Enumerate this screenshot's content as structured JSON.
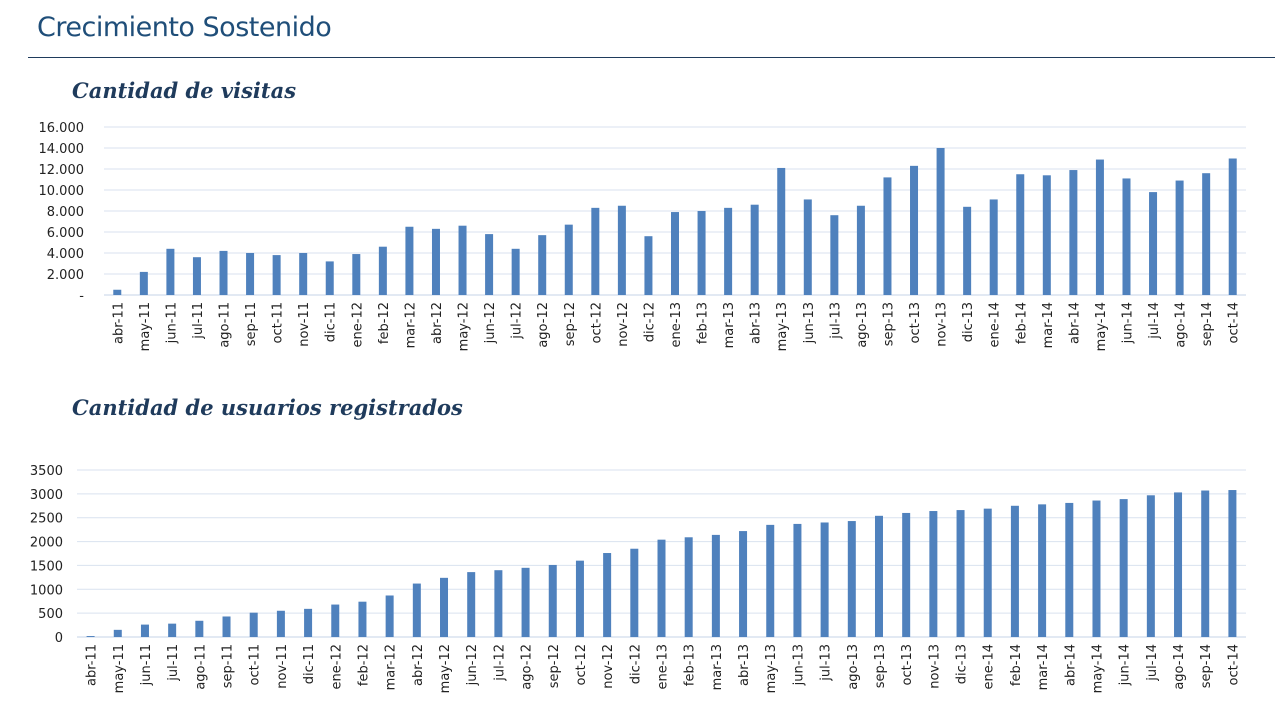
{
  "page": {
    "title": "Crecimiento Sostenido"
  },
  "charts": [
    {
      "heading": "Cantidad de visitas"
    },
    {
      "heading": "Cantidad de usuarios registrados"
    }
  ],
  "colors": {
    "bar": "#4f81bd",
    "grid": "#d9e2ef",
    "title": "#1f4e79",
    "heading": "#1f3b5c"
  },
  "chart_data": [
    {
      "type": "bar",
      "title": "Cantidad de visitas",
      "xlabel": "",
      "ylabel": "",
      "ylim": [
        0,
        16000
      ],
      "yticks": [
        0,
        2000,
        4000,
        6000,
        8000,
        10000,
        12000,
        14000,
        16000
      ],
      "ytick_labels": [
        "-",
        "2.000",
        "4.000",
        "6.000",
        "8.000",
        "10.000",
        "12.000",
        "14.000",
        "16.000"
      ],
      "grid": true,
      "legend": "none",
      "categories": [
        "abr-11",
        "may-11",
        "jun-11",
        "jul-11",
        "ago-11",
        "sep-11",
        "oct-11",
        "nov-11",
        "dic-11",
        "ene-12",
        "feb-12",
        "mar-12",
        "abr-12",
        "may-12",
        "jun-12",
        "jul-12",
        "ago-12",
        "sep-12",
        "oct-12",
        "nov-12",
        "dic-12",
        "ene-13",
        "feb-13",
        "mar-13",
        "abr-13",
        "may-13",
        "jun-13",
        "jul-13",
        "ago-13",
        "sep-13",
        "oct-13",
        "nov-13",
        "dic-13",
        "ene-14",
        "feb-14",
        "mar-14",
        "abr-14",
        "may-14",
        "jun-14",
        "jul-14",
        "ago-14",
        "sep-14",
        "oct-14"
      ],
      "values": [
        500,
        2200,
        4400,
        3600,
        4200,
        4000,
        3800,
        4000,
        3200,
        3900,
        4600,
        6500,
        6300,
        6600,
        5800,
        4400,
        5700,
        6700,
        8300,
        8500,
        5600,
        7900,
        8000,
        8300,
        8600,
        12100,
        9100,
        7600,
        8500,
        11200,
        12300,
        14000,
        8400,
        9100,
        11500,
        11400,
        11900,
        12900,
        11100,
        9800,
        10900,
        11600,
        13000
      ]
    },
    {
      "type": "bar",
      "title": "Cantidad de usuarios registrados",
      "xlabel": "",
      "ylabel": "",
      "ylim": [
        0,
        3500
      ],
      "yticks": [
        0,
        500,
        1000,
        1500,
        2000,
        2500,
        3000,
        3500
      ],
      "ytick_labels": [
        "0",
        "500",
        "1000",
        "1500",
        "2000",
        "2500",
        "3000",
        "3500"
      ],
      "grid": true,
      "legend": "none",
      "categories": [
        "abr-11",
        "may-11",
        "jun-11",
        "jul-11",
        "ago-11",
        "sep-11",
        "oct-11",
        "nov-11",
        "dic-11",
        "ene-12",
        "feb-12",
        "mar-12",
        "abr-12",
        "may-12",
        "jun-12",
        "jul-12",
        "ago-12",
        "sep-12",
        "oct-12",
        "nov-12",
        "dic-12",
        "ene-13",
        "feb-13",
        "mar-13",
        "abr-13",
        "may-13",
        "jun-13",
        "jul-13",
        "ago-13",
        "sep-13",
        "oct-13",
        "nov-13",
        "dic-13",
        "ene-14",
        "feb-14",
        "mar-14",
        "abr-14",
        "may-14",
        "jun-14",
        "jul-14",
        "ago-14",
        "sep-14",
        "oct-14"
      ],
      "values": [
        20,
        150,
        260,
        280,
        340,
        430,
        510,
        550,
        590,
        680,
        740,
        870,
        1120,
        1240,
        1360,
        1400,
        1450,
        1510,
        1600,
        1760,
        1850,
        2040,
        2090,
        2140,
        2220,
        2350,
        2370,
        2400,
        2430,
        2540,
        2600,
        2640,
        2660,
        2690,
        2750,
        2780,
        2810,
        2860,
        2890,
        2970,
        3030,
        3070,
        3080
      ]
    }
  ]
}
